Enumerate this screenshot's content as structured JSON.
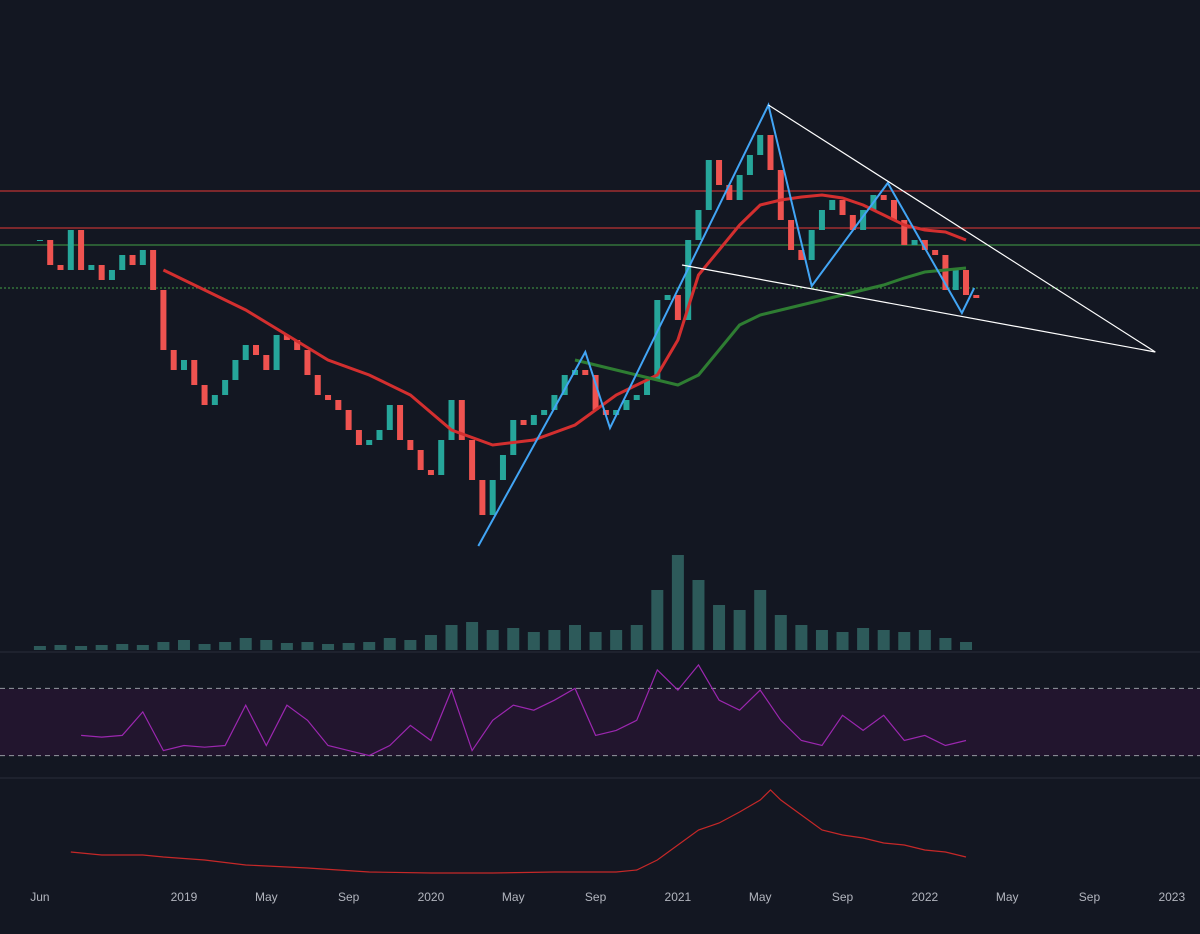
{
  "chart_data": {
    "type": "candlestick",
    "xlim": [
      -1.94,
      56.37
    ],
    "xticks": [
      {
        "value": 0,
        "label": "Jun"
      },
      {
        "value": 7,
        "label": "2019"
      },
      {
        "value": 11,
        "label": "May"
      },
      {
        "value": 15,
        "label": "Sep"
      },
      {
        "value": 19,
        "label": "2020"
      },
      {
        "value": 23,
        "label": "May"
      },
      {
        "value": 27,
        "label": "Sep"
      },
      {
        "value": 31,
        "label": "2021"
      },
      {
        "value": 35,
        "label": "May"
      },
      {
        "value": 39,
        "label": "Sep"
      },
      {
        "value": 43,
        "label": "2022"
      },
      {
        "value": 47,
        "label": "May"
      },
      {
        "value": 51,
        "label": "Sep"
      },
      {
        "value": 55,
        "label": "2023"
      }
    ],
    "ylim": [
      0,
      560
    ],
    "up_color": "#26a69a",
    "down_color": "#ef5350",
    "price": {
      "x": [
        0,
        0.5,
        1,
        1.5,
        2,
        2.5,
        3,
        3.5,
        4,
        4.5,
        5,
        5.5,
        6,
        6.5,
        7,
        7.5,
        8,
        8.5,
        9,
        9.5,
        10,
        10.5,
        11,
        11.5,
        12,
        12.5,
        13,
        13.5,
        14,
        14.5,
        15,
        15.5,
        16,
        16.5,
        17,
        17.5,
        18,
        18.5,
        19,
        19.5,
        20,
        20.5,
        21,
        21.5,
        22,
        22.5,
        23,
        23.5,
        24,
        24.5,
        25,
        25.5,
        26,
        26.5,
        27,
        27.5,
        28,
        28.5,
        29,
        29.5,
        30,
        30.5,
        31,
        31.5,
        32,
        32.5,
        33,
        33.5,
        34,
        34.5,
        35,
        35.5,
        36,
        36.5,
        37,
        37.5,
        38,
        38.5,
        39,
        39.5,
        40,
        40.5,
        41,
        41.5,
        42,
        42.5,
        43,
        43.5,
        44,
        44.5,
        45,
        45.5
      ],
      "values": [
        320,
        295,
        290,
        330,
        290,
        295,
        280,
        290,
        305,
        295,
        310,
        270,
        210,
        190,
        200,
        175,
        155,
        165,
        180,
        200,
        215,
        205,
        190,
        225,
        220,
        210,
        185,
        165,
        160,
        150,
        130,
        115,
        120,
        130,
        155,
        120,
        110,
        90,
        85,
        120,
        160,
        120,
        80,
        45,
        80,
        105,
        140,
        135,
        145,
        150,
        165,
        185,
        190,
        185,
        150,
        145,
        150,
        160,
        165,
        180,
        260,
        265,
        240,
        320,
        350,
        400,
        375,
        360,
        385,
        405,
        425,
        390,
        340,
        310,
        300,
        330,
        350,
        360,
        345,
        330,
        350,
        365,
        360,
        340,
        315,
        320,
        310,
        305,
        270,
        290,
        265,
        262
      ]
    },
    "ma_slow": {
      "color": "#d32f2f",
      "x": [
        6,
        8,
        10,
        12,
        14,
        16,
        18,
        20,
        22,
        24,
        26,
        28,
        29,
        30,
        31,
        32,
        33,
        34,
        35,
        36,
        37,
        38,
        39,
        40,
        41,
        42,
        43,
        44,
        45
      ],
      "values": [
        290,
        270,
        250,
        225,
        200,
        185,
        165,
        130,
        115,
        120,
        135,
        165,
        175,
        185,
        220,
        285,
        310,
        335,
        355,
        360,
        363,
        365,
        362,
        355,
        345,
        335,
        330,
        328,
        320
      ]
    },
    "ma_fast": {
      "color": "#2e7d32",
      "x": [
        26,
        27,
        28,
        29,
        30,
        31,
        32,
        33,
        34,
        35,
        36,
        37,
        38,
        39,
        40,
        41,
        42,
        43,
        44,
        45
      ],
      "values": [
        200,
        195,
        190,
        185,
        180,
        175,
        185,
        210,
        235,
        245,
        250,
        255,
        260,
        265,
        270,
        275,
        282,
        288,
        290,
        292
      ]
    },
    "levels": [
      {
        "value": 369,
        "color": "#e53935"
      },
      {
        "value": 332,
        "color": "#e53935"
      },
      {
        "value": 315,
        "color": "#43a047"
      },
      {
        "value": 272,
        "color": "#43a047"
      }
    ],
    "zigzag": {
      "color": "#42a5f5",
      "x": [
        21.3,
        26.5,
        27.7,
        35.4,
        37.5,
        41.2,
        44.8,
        45.4
      ],
      "values": [
        14,
        208,
        132,
        455,
        274,
        377,
        247,
        272
      ]
    },
    "wedge": [
      {
        "color": "#ffffff",
        "x": [
          35.4,
          54.2
        ],
        "values": [
          455,
          208
        ]
      },
      {
        "color": "#ffffff",
        "x": [
          31.2,
          54.2
        ],
        "values": [
          295,
          208
        ]
      }
    ],
    "volume": {
      "color": "#2d5a5a",
      "ylim": [
        0,
        650
      ],
      "x": [
        0,
        1,
        2,
        3,
        4,
        5,
        6,
        7,
        8,
        9,
        10,
        11,
        12,
        13,
        14,
        15,
        16,
        17,
        18,
        19,
        20,
        21,
        22,
        23,
        24,
        25,
        26,
        27,
        28,
        29,
        30,
        31,
        32,
        33,
        34,
        35,
        36,
        37,
        38,
        39,
        40,
        41,
        42,
        43,
        44,
        45
      ],
      "values": [
        4,
        5,
        4,
        5,
        6,
        5,
        8,
        10,
        6,
        8,
        12,
        10,
        7,
        8,
        6,
        7,
        8,
        12,
        10,
        15,
        25,
        28,
        20,
        22,
        18,
        20,
        25,
        18,
        20,
        25,
        60,
        95,
        70,
        45,
        40,
        60,
        35,
        25,
        20,
        18,
        22,
        20,
        18,
        20,
        12,
        8
      ]
    },
    "rsi": {
      "color": "#9c27b0",
      "ylim": [
        0,
        100
      ],
      "bands": [
        30,
        70
      ],
      "x": [
        2,
        3,
        4,
        5,
        6,
        7,
        8,
        9,
        10,
        11,
        12,
        13,
        14,
        15,
        16,
        17,
        18,
        19,
        20,
        21,
        22,
        23,
        24,
        25,
        26,
        27,
        28,
        29,
        30,
        31,
        32,
        33,
        34,
        35,
        36,
        37,
        38,
        39,
        40,
        41,
        42,
        43,
        44,
        45
      ],
      "values": [
        42,
        41,
        42,
        56,
        33,
        36,
        35,
        36,
        60,
        36,
        60,
        51,
        36,
        33,
        30,
        36,
        48,
        39,
        69,
        33,
        51,
        60,
        57,
        63,
        70,
        42,
        45,
        51,
        81,
        69,
        84,
        63,
        57,
        69,
        51,
        39,
        36,
        54,
        45,
        54,
        39,
        42,
        36,
        39
      ]
    },
    "indicator": {
      "color": "#c62828",
      "ylim": [
        0,
        100
      ],
      "x": [
        1.5,
        3,
        5,
        6,
        8,
        10,
        13,
        16,
        19,
        22,
        25,
        28,
        29,
        30,
        31,
        32,
        33,
        34,
        35,
        35.5,
        36,
        37,
        38,
        39,
        40,
        41,
        42,
        43,
        44,
        45
      ],
      "values": [
        28,
        25,
        25,
        23,
        20,
        15,
        12,
        8,
        7,
        7,
        8,
        8,
        10,
        20,
        35,
        50,
        57,
        68,
        80,
        90,
        80,
        65,
        50,
        45,
        42,
        37,
        35,
        30,
        28,
        23
      ]
    }
  }
}
